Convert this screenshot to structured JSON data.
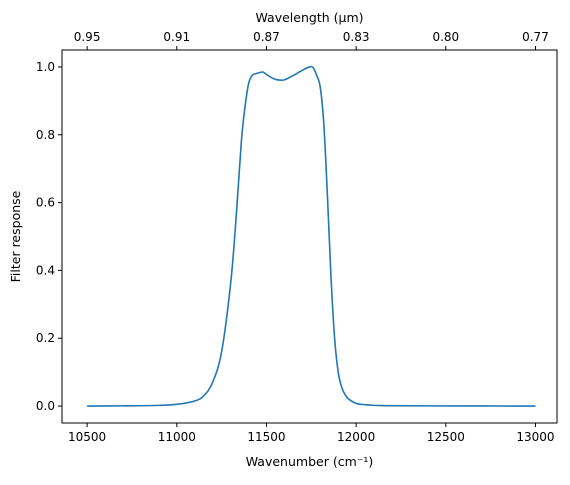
{
  "chart_data": {
    "type": "line",
    "title": "",
    "xlabel": "Wavenumber (cm⁻¹)",
    "ylabel": "Filter response",
    "top_xlabel": "Wavelength (μm)",
    "xlim": [
      10360,
      13120
    ],
    "ylim": [
      -0.05,
      1.05
    ],
    "x_ticks": [
      10500,
      11000,
      11500,
      12000,
      12500,
      13000
    ],
    "x_tick_labels": [
      "10500",
      "11000",
      "11500",
      "12000",
      "12500",
      "13000"
    ],
    "y_ticks": [
      0.0,
      0.2,
      0.4,
      0.6,
      0.8,
      1.0
    ],
    "y_tick_labels": [
      "0.0",
      "0.2",
      "0.4",
      "0.6",
      "0.8",
      "1.0"
    ],
    "top_x_ticks": [
      10500,
      11000,
      11500,
      12000,
      12500,
      13000
    ],
    "top_x_tick_labels": [
      "0.95",
      "0.91",
      "0.87",
      "0.83",
      "0.80",
      "0.77"
    ],
    "grid": false,
    "series": [
      {
        "color": "#1f77b4",
        "x": [
          10500,
          10700,
          10900,
          11000,
          11100,
          11150,
          11200,
          11250,
          11300,
          11330,
          11360,
          11380,
          11400,
          11420,
          11440,
          11460,
          11480,
          11500,
          11530,
          11560,
          11600,
          11650,
          11700,
          11740,
          11760,
          11780,
          11800,
          11820,
          11840,
          11860,
          11880,
          11900,
          11920,
          11950,
          12000,
          12050,
          12100,
          12200,
          12400,
          12700,
          13000
        ],
        "y": [
          0.0,
          0.0005,
          0.002,
          0.005,
          0.015,
          0.03,
          0.07,
          0.16,
          0.36,
          0.55,
          0.78,
          0.88,
          0.95,
          0.975,
          0.98,
          0.983,
          0.985,
          0.978,
          0.968,
          0.962,
          0.962,
          0.975,
          0.99,
          1.0,
          0.998,
          0.975,
          0.94,
          0.83,
          0.62,
          0.38,
          0.2,
          0.1,
          0.055,
          0.025,
          0.008,
          0.004,
          0.002,
          0.001,
          0.0005,
          0.0002,
          0.0
        ]
      }
    ]
  }
}
